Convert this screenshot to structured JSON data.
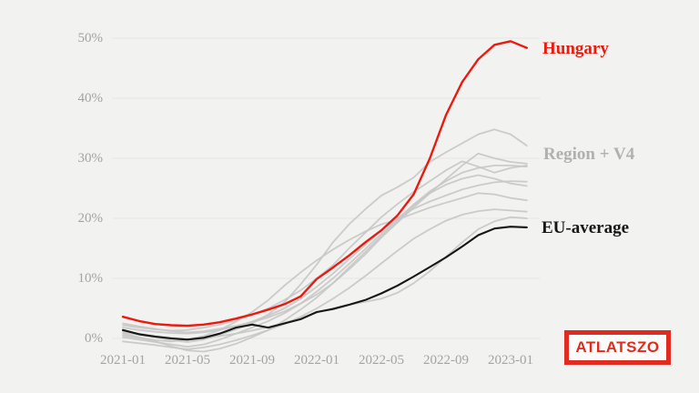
{
  "page": {
    "background": "#f2f2f0"
  },
  "chart_data": {
    "type": "line",
    "title": "",
    "x_unit": "year-month",
    "x_start": "2021-01",
    "x_end": "2023-02",
    "x_ticks": [
      {
        "label": "2021-01",
        "month": 0
      },
      {
        "label": "2021-05",
        "month": 4
      },
      {
        "label": "2021-09",
        "month": 8
      },
      {
        "label": "2022-01",
        "month": 12
      },
      {
        "label": "2022-05",
        "month": 16
      },
      {
        "label": "2022-09",
        "month": 20
      },
      {
        "label": "2023-01",
        "month": 24
      }
    ],
    "y_ticks": [
      {
        "label": "50%",
        "value": 50
      },
      {
        "label": "40%",
        "value": 40
      },
      {
        "label": "30%",
        "value": 30
      },
      {
        "label": "20%",
        "value": 20
      },
      {
        "label": "10%",
        "value": 10
      },
      {
        "label": "0%",
        "value": 0
      }
    ],
    "ylim": [
      -3,
      53
    ],
    "grid": "horizontal-only",
    "legend": "inline labels at right ends of highlighted lines",
    "annotations": [
      {
        "id": "hungary",
        "text": "Hungary",
        "color": "#ec1a0e"
      },
      {
        "id": "region-v4",
        "text": "Region + V4",
        "color": "#b0b0ae"
      },
      {
        "id": "eu-average",
        "text": "EU-average",
        "color": "#161616"
      }
    ],
    "series": [
      {
        "id": "region-line-1",
        "name": "Region + V4 country line 1",
        "role": "region-v4",
        "color": "#c7c7c7",
        "stroke_width": 1.8,
        "opacity": 0.9,
        "values": [
          1.0,
          0.6,
          0.2,
          -0.3,
          -0.6,
          -0.2,
          0.6,
          1.5,
          2.5,
          4.0,
          6.0,
          9.0,
          12.3,
          16.0,
          19.0,
          21.5,
          23.8,
          25.2,
          26.8,
          29.4,
          31.0,
          32.5,
          34.0,
          34.8,
          34.0,
          32.1
        ]
      },
      {
        "id": "region-line-2",
        "name": "Region + V4 country line 2",
        "role": "region-v4",
        "color": "#c7c7c7",
        "stroke_width": 1.8,
        "opacity": 0.9,
        "values": [
          2.5,
          2.0,
          1.6,
          1.2,
          1.0,
          1.2,
          1.6,
          2.1,
          2.7,
          3.5,
          4.5,
          5.8,
          7.3,
          9.2,
          11.5,
          14.0,
          16.8,
          19.3,
          21.8,
          24.2,
          26.5,
          28.8,
          30.8,
          30.0,
          29.4,
          29.1
        ]
      },
      {
        "id": "region-line-3",
        "name": "Region + V4 country line 3",
        "role": "region-v4",
        "color": "#c7c7c7",
        "stroke_width": 1.8,
        "opacity": 0.9,
        "values": [
          0.2,
          -0.2,
          -0.6,
          -1.0,
          -1.4,
          -1.0,
          -0.2,
          0.8,
          1.8,
          2.9,
          4.2,
          5.8,
          7.8,
          10.0,
          12.4,
          14.9,
          17.4,
          19.9,
          22.3,
          24.5,
          26.2,
          27.6,
          28.4,
          28.8,
          28.8,
          28.6
        ]
      },
      {
        "id": "region-line-4",
        "name": "Region + V4 country line 4",
        "role": "region-v4",
        "color": "#c7c7c7",
        "stroke_width": 1.8,
        "opacity": 0.9,
        "values": [
          1.8,
          1.4,
          1.1,
          0.9,
          0.8,
          1.0,
          1.4,
          2.0,
          2.8,
          3.8,
          5.0,
          6.6,
          8.6,
          10.8,
          13.2,
          15.6,
          18.0,
          20.0,
          21.6,
          22.8,
          23.8,
          24.8,
          25.5,
          26.0,
          26.2,
          26.1
        ]
      },
      {
        "id": "region-line-5",
        "name": "Region + V4 country line 5",
        "role": "region-v4",
        "color": "#c7c7c7",
        "stroke_width": 1.8,
        "opacity": 0.9,
        "values": [
          0.5,
          0.1,
          -0.3,
          -0.5,
          -0.2,
          0.4,
          1.4,
          2.8,
          4.4,
          6.4,
          8.8,
          11.0,
          13.0,
          14.8,
          16.4,
          17.8,
          19.0,
          19.8,
          20.8,
          21.8,
          22.6,
          23.4,
          24.2,
          24.0,
          23.4,
          23.0
        ]
      },
      {
        "id": "region-line-6",
        "name": "Region + V4 country line 6",
        "role": "region-v4",
        "color": "#c7c7c7",
        "stroke_width": 1.8,
        "opacity": 0.9,
        "values": [
          -0.5,
          -0.8,
          -1.1,
          -1.5,
          -1.8,
          -1.5,
          -1.0,
          -0.3,
          0.5,
          1.4,
          2.4,
          3.6,
          5.0,
          6.6,
          8.4,
          10.4,
          12.5,
          14.6,
          16.6,
          18.2,
          19.6,
          20.6,
          21.2,
          21.5,
          21.3,
          21.1
        ]
      },
      {
        "id": "region-line-7",
        "name": "Region + V4 country line 7",
        "role": "region-v4",
        "color": "#c7c7c7",
        "stroke_width": 1.8,
        "opacity": 0.9,
        "values": [
          1.2,
          0.8,
          0.4,
          0.1,
          -0.1,
          0.1,
          0.4,
          0.8,
          1.3,
          1.9,
          2.6,
          3.4,
          4.3,
          5.0,
          5.6,
          6.1,
          6.6,
          7.6,
          9.2,
          11.2,
          13.6,
          16.0,
          18.2,
          19.5,
          20.2,
          20.0
        ]
      },
      {
        "id": "region-line-8",
        "name": "Region + V4 country line 8",
        "role": "region-v4",
        "color": "#c7c7c7",
        "stroke_width": 1.8,
        "opacity": 0.9,
        "values": [
          0.8,
          0.2,
          -0.5,
          -1.3,
          -2.0,
          -2.2,
          -1.7,
          -0.9,
          0.2,
          1.4,
          3.0,
          4.8,
          6.8,
          9.2,
          11.8,
          14.4,
          17.0,
          19.6,
          22.2,
          24.2,
          25.6,
          26.6,
          27.2,
          26.6,
          25.8,
          25.4
        ]
      },
      {
        "id": "region-line-9",
        "name": "Region + V4 country line 9",
        "role": "region-v4",
        "color": "#c7c7c7",
        "stroke_width": 1.8,
        "opacity": 0.9,
        "values": [
          2.2,
          1.8,
          1.5,
          1.3,
          1.4,
          1.8,
          2.3,
          3.0,
          3.9,
          5.0,
          6.4,
          8.0,
          10.0,
          12.2,
          15.0,
          17.6,
          20.2,
          22.4,
          24.4,
          26.2,
          28.0,
          29.5,
          28.6,
          27.6,
          28.4,
          28.8
        ]
      },
      {
        "id": "eu-average",
        "name": "EU-average",
        "role": "eu-average",
        "color": "#161616",
        "stroke_width": 2.1,
        "opacity": 1,
        "values": [
          1.4,
          0.7,
          0.3,
          0.0,
          -0.2,
          0.1,
          0.8,
          1.8,
          2.3,
          1.8,
          2.5,
          3.2,
          4.4,
          4.9,
          5.6,
          6.4,
          7.5,
          8.8,
          10.3,
          11.9,
          13.5,
          15.3,
          17.2,
          18.3,
          18.6,
          18.5
        ]
      },
      {
        "id": "hungary",
        "name": "Hungary",
        "role": "hungary",
        "color": "#ec1a0e",
        "stroke_width": 2.4,
        "opacity": 1,
        "values": [
          3.6,
          2.9,
          2.4,
          2.2,
          2.1,
          2.3,
          2.7,
          3.3,
          4.0,
          4.8,
          5.7,
          7.0,
          9.9,
          11.8,
          13.8,
          16.0,
          18.0,
          20.5,
          24.0,
          30.0,
          37.2,
          42.7,
          46.5,
          48.9,
          49.5,
          48.4
        ]
      }
    ]
  },
  "logo": {
    "text": "ATLATSZO",
    "color": "#e22b1f",
    "border_color": "#e22b1f",
    "background": "#fcfcfa"
  }
}
